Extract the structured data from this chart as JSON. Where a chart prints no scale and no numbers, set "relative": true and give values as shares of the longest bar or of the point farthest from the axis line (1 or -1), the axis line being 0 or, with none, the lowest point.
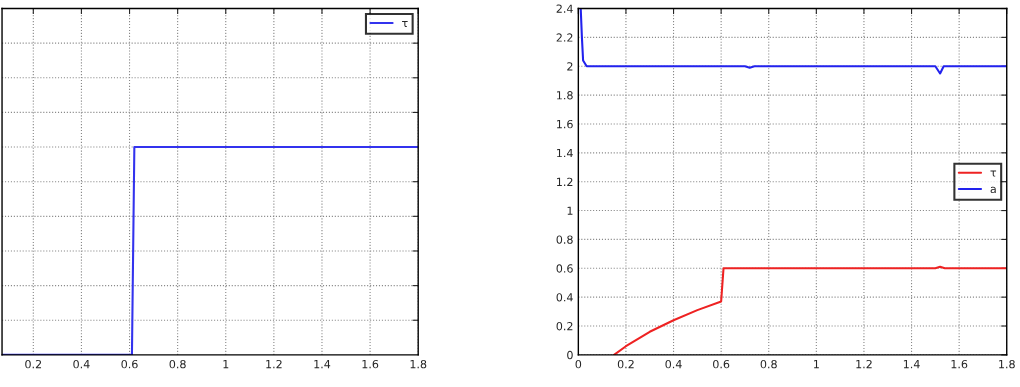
{
  "chart_data": [
    {
      "type": "line",
      "relative": true,
      "xlim": [
        0.07,
        1.8
      ],
      "xticks": [
        0.2,
        0.4,
        0.6,
        0.8,
        1,
        1.2,
        1.4,
        1.6,
        1.8
      ],
      "tick_labels": "x",
      "grid": true,
      "legend": "top right",
      "series": [
        {
          "name": "τ",
          "color": "#3333ee",
          "x": [
            0.07,
            0.61,
            0.62,
            1.8
          ],
          "values": [
            0,
            0,
            1,
            1
          ]
        }
      ]
    },
    {
      "type": "line",
      "xlim": [
        0,
        1.8
      ],
      "ylim": [
        0,
        2.4
      ],
      "xticks": [
        0,
        0.2,
        0.4,
        0.6,
        0.8,
        1,
        1.2,
        1.4,
        1.6,
        1.8
      ],
      "yticks": [
        0,
        0.2,
        0.4,
        0.6,
        0.8,
        1,
        1.2,
        1.4,
        1.6,
        1.8,
        2,
        2.2,
        2.4
      ],
      "grid": true,
      "legend": "right",
      "series": [
        {
          "name": "τ",
          "color": "#ee2222",
          "x": [
            0.15,
            0.2,
            0.3,
            0.4,
            0.5,
            0.6,
            0.61,
            1.5,
            1.52,
            1.54,
            1.8
          ],
          "values": [
            0,
            0.06,
            0.16,
            0.24,
            0.31,
            0.37,
            0.6,
            0.6,
            0.61,
            0.6,
            0.6
          ]
        },
        {
          "name": "a",
          "color": "#2222ee",
          "x": [
            0.01,
            0.015,
            0.02,
            0.035,
            0.7,
            0.72,
            0.74,
            1.5,
            1.52,
            1.535,
            1.8
          ],
          "values": [
            2.4,
            2.2,
            2.04,
            2.0,
            2.0,
            1.99,
            2.0,
            2.0,
            1.95,
            2.0,
            2.0
          ]
        }
      ]
    }
  ]
}
